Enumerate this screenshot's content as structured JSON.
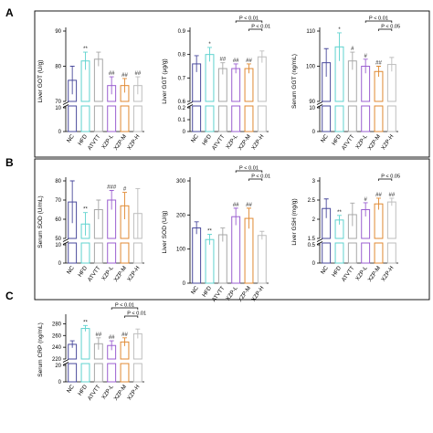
{
  "series_colors": [
    "#4a4a9c",
    "#5fd3cf",
    "#a7a7a7",
    "#9b5fd0",
    "#e08a33",
    "#bdbdbd"
  ],
  "row_boxes": [
    "A",
    "B"
  ],
  "chart_data": [
    {
      "id": "gotA",
      "panel_letter": "A",
      "row": "A",
      "type": "bar",
      "title": "",
      "ylabel": "Liver GOT (U/g)",
      "categories": [
        "NC",
        "HFD",
        "ATVTT",
        "XZP-L",
        "XZP-M",
        "XZP-H"
      ],
      "values": [
        76,
        81.5,
        82,
        74.5,
        74.5,
        74.5
      ],
      "errors": [
        4,
        2.5,
        2,
        2.5,
        2,
        2.5
      ],
      "ylim": [
        70,
        90
      ],
      "yticks": [
        70,
        80,
        90
      ],
      "lower_ticks": [
        0,
        10
      ],
      "sig": [
        "",
        "**",
        "",
        "##",
        "##",
        "##"
      ],
      "brackets": []
    },
    {
      "id": "ggtA",
      "row": "A",
      "type": "bar",
      "title": "",
      "ylabel": "Liver GGT (μg/g)",
      "categories": [
        "NC",
        "HFD",
        "ATVTT",
        "XZP-L",
        "XZP-M",
        "XZP-H"
      ],
      "values": [
        0.76,
        0.8,
        0.74,
        0.74,
        0.74,
        0.79
      ],
      "errors": [
        0.035,
        0.03,
        0.025,
        0.02,
        0.02,
        0.025
      ],
      "ylim": [
        0.6,
        0.9
      ],
      "yticks": [
        0.6,
        0.7,
        0.8,
        0.9
      ],
      "lower_ticks": [
        0,
        0.1,
        0.2
      ],
      "sig": [
        "",
        "*",
        "##",
        "##",
        "##",
        ""
      ],
      "brackets": [
        {
          "from": 3,
          "to": 5,
          "label": "P < 0.01",
          "level": 2
        },
        {
          "from": 4,
          "to": 5,
          "label": "P < 0.01",
          "level": 1
        }
      ]
    },
    {
      "id": "sggtA",
      "row": "A",
      "type": "bar",
      "title": "",
      "ylabel": "Serum GGT (ng/mL)",
      "categories": [
        "NC",
        "HFD",
        "ATVTT",
        "XZP-L",
        "XZP-M",
        "XZP-H"
      ],
      "values": [
        101,
        105.5,
        101.5,
        100,
        98.5,
        100.5
      ],
      "errors": [
        4,
        4,
        2.5,
        2,
        1.5,
        2
      ],
      "ylim": [
        90,
        110
      ],
      "yticks": [
        90,
        100,
        110
      ],
      "lower_ticks": [
        0,
        10
      ],
      "sig": [
        "",
        "*",
        "#",
        "#",
        "##",
        ""
      ],
      "brackets": [
        {
          "from": 3,
          "to": 5,
          "label": "P < 0.01",
          "level": 2
        },
        {
          "from": 4,
          "to": 5,
          "label": "P < 0.05",
          "level": 1
        }
      ]
    },
    {
      "id": "sodB",
      "panel_letter": "B",
      "row": "B",
      "type": "bar",
      "title": "",
      "ylabel": "Serum SOD (U/mL)",
      "categories": [
        "NC",
        "HFD",
        "ATVTT",
        "XZP-L",
        "XZP-M",
        "XZP-H"
      ],
      "values": [
        69,
        57.5,
        65,
        70,
        67,
        63
      ],
      "errors": [
        11,
        6,
        5,
        5,
        7,
        13
      ],
      "ylim": [
        50,
        80
      ],
      "yticks": [
        50,
        60,
        70,
        80
      ],
      "lower_ticks": [
        0,
        10
      ],
      "sig": [
        "",
        "**",
        "",
        "###",
        "#",
        ""
      ],
      "brackets": []
    },
    {
      "id": "lsodB",
      "row": "B",
      "type": "bar",
      "title": "",
      "ylabel": "Liver SOD (U/g)",
      "categories": [
        "NC",
        "HFD",
        "ATVTT",
        "XZP-L",
        "XZP-M",
        "XZP-H"
      ],
      "values": [
        162,
        128,
        142,
        195,
        190,
        140
      ],
      "errors": [
        18,
        15,
        20,
        25,
        30,
        12
      ],
      "ylim": [
        0,
        300
      ],
      "yticks": [
        0,
        100,
        200,
        300
      ],
      "lower_ticks": [],
      "sig": [
        "",
        "**",
        "",
        "##",
        "##",
        ""
      ],
      "brackets": [
        {
          "from": 3,
          "to": 5,
          "label": "P < 0.01",
          "level": 2
        },
        {
          "from": 4,
          "to": 5,
          "label": "P < 0.01",
          "level": 1
        }
      ]
    },
    {
      "id": "gshB",
      "row": "B",
      "type": "bar",
      "title": "",
      "ylabel": "Liver GSH (mg/g)",
      "categories": [
        "NC",
        "HFD",
        "ATVTT",
        "XZP-L",
        "XZP-M",
        "XZP-H"
      ],
      "values": [
        2.28,
        1.98,
        2.12,
        2.25,
        2.4,
        2.45
      ],
      "errors": [
        0.25,
        0.12,
        0.3,
        0.18,
        0.15,
        0.1
      ],
      "ylim": [
        1.5,
        3.0
      ],
      "yticks": [
        1.5,
        2.0,
        2.5,
        3.0
      ],
      "lower_ticks": [
        0,
        0.5
      ],
      "sig": [
        "",
        "**",
        "",
        "#",
        "##",
        "##"
      ],
      "brackets": [
        {
          "from": 4,
          "to": 5,
          "label": "P < 0.05",
          "level": 1
        }
      ]
    },
    {
      "id": "crpC",
      "panel_letter": "C",
      "row": "C",
      "type": "bar",
      "title": "",
      "ylabel": "Serum CRP (ng/mL)",
      "categories": [
        "NC",
        "HFD",
        "ATVTT",
        "XZP-L",
        "XZP-M",
        "XZP-H"
      ],
      "values": [
        245,
        272,
        246,
        243,
        249,
        263
      ],
      "errors": [
        6,
        5,
        10,
        8,
        7,
        8
      ],
      "ylim": [
        220,
        290
      ],
      "yticks": [
        220,
        240,
        260,
        280
      ],
      "lower_ticks": [
        0,
        20
      ],
      "sig": [
        "",
        "**",
        "##",
        "##",
        "##",
        ""
      ],
      "brackets": [
        {
          "from": 3,
          "to": 5,
          "label": "P < 0.01",
          "level": 2
        },
        {
          "from": 4,
          "to": 5,
          "label": "P < 0.01",
          "level": 1
        }
      ]
    }
  ]
}
